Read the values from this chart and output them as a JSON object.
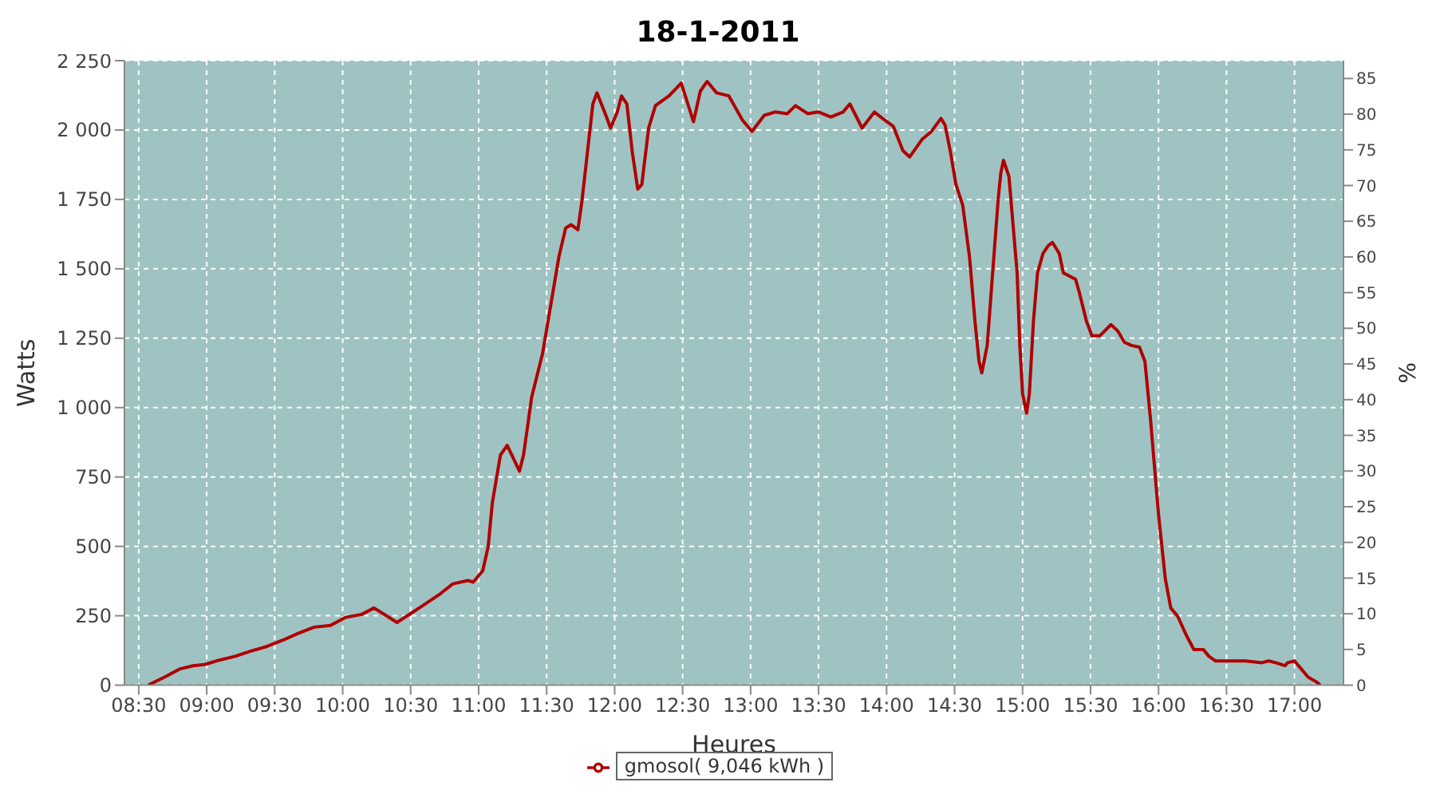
{
  "chart_data": {
    "type": "line",
    "title": "18-1-2011",
    "xlabel": "Heures",
    "ylabel": "Watts",
    "y2label": "%",
    "x": [
      8.57,
      8.69,
      8.8,
      8.9,
      8.99,
      9.07,
      9.21,
      9.32,
      9.44,
      9.56,
      9.67,
      9.79,
      9.91,
      10.02,
      10.14,
      10.23,
      10.4,
      10.6,
      10.72,
      10.81,
      10.92,
      10.96,
      11.03,
      11.07,
      11.1,
      11.16,
      11.21,
      11.3,
      11.33,
      11.39,
      11.47,
      11.54,
      11.59,
      11.64,
      11.68,
      11.73,
      11.76,
      11.8,
      11.84,
      11.87,
      11.94,
      11.97,
      12.02,
      12.05,
      12.09,
      12.13,
      12.17,
      12.2,
      12.25,
      12.3,
      12.4,
      12.49,
      12.55,
      12.58,
      12.63,
      12.68,
      12.75,
      12.84,
      12.94,
      13.01,
      13.1,
      13.18,
      13.27,
      13.33,
      13.42,
      13.5,
      13.59,
      13.68,
      13.73,
      13.82,
      13.91,
      13.97,
      14.05,
      14.12,
      14.17,
      14.26,
      14.33,
      14.4,
      14.43,
      14.47,
      14.51,
      14.56,
      14.61,
      14.65,
      14.68,
      14.7,
      14.74,
      14.78,
      14.82,
      14.84,
      14.86,
      14.9,
      14.93,
      14.96,
      14.98,
      15.0,
      15.03,
      15.05,
      15.08,
      15.11,
      15.15,
      15.19,
      15.22,
      15.27,
      15.3,
      15.39,
      15.42,
      15.47,
      15.51,
      15.57,
      15.65,
      15.7,
      15.75,
      15.8,
      15.86,
      15.9,
      15.94,
      16.0,
      16.05,
      16.09,
      16.14,
      16.21,
      16.26,
      16.33,
      16.37,
      16.42,
      16.52,
      16.64,
      16.76,
      16.81,
      16.86,
      16.93,
      16.95,
      17.0,
      17.05,
      17.1,
      17.16,
      17.19
    ],
    "series": [
      {
        "name": "gmosol( 9,046 kWh )",
        "color": "#b00000",
        "values": [
          0,
          29,
          58,
          70,
          75,
          87,
          104,
          122,
          139,
          162,
          186,
          209,
          215,
          244,
          255,
          278,
          226,
          290,
          330,
          365,
          377,
          371,
          412,
          499,
          655,
          829,
          864,
          771,
          829,
          1038,
          1195,
          1398,
          1543,
          1647,
          1659,
          1641,
          1746,
          1920,
          2094,
          2134,
          2047,
          2007,
          2065,
          2123,
          2094,
          1920,
          1787,
          1804,
          2007,
          2088,
          2123,
          2169,
          2076,
          2030,
          2140,
          2175,
          2134,
          2123,
          2036,
          1995,
          2053,
          2065,
          2059,
          2088,
          2059,
          2065,
          2047,
          2065,
          2094,
          2007,
          2065,
          2042,
          2013,
          1926,
          1903,
          1966,
          1995,
          2042,
          2018,
          1920,
          1804,
          1729,
          1543,
          1311,
          1166,
          1125,
          1224,
          1485,
          1746,
          1845,
          1891,
          1833,
          1659,
          1485,
          1224,
          1050,
          980,
          1050,
          1311,
          1485,
          1555,
          1584,
          1595,
          1555,
          1485,
          1462,
          1410,
          1311,
          1259,
          1259,
          1299,
          1276,
          1235,
          1224,
          1218,
          1166,
          963,
          615,
          383,
          278,
          249,
          174,
          128,
          128,
          104,
          87,
          87,
          87,
          81,
          87,
          81,
          70,
          81,
          87,
          58,
          29,
          12,
          0
        ]
      }
    ],
    "xlim": [
      8.395,
      17.36
    ],
    "xticks": [
      {
        "value": 8.5,
        "label": "08:30"
      },
      {
        "value": 9,
        "label": "09:00"
      },
      {
        "value": 9.5,
        "label": "09:30"
      },
      {
        "value": 10,
        "label": "10:00"
      },
      {
        "value": 10.5,
        "label": "10:30"
      },
      {
        "value": 11,
        "label": "11:00"
      },
      {
        "value": 11.5,
        "label": "11:30"
      },
      {
        "value": 12,
        "label": "12:00"
      },
      {
        "value": 12.5,
        "label": "12:30"
      },
      {
        "value": 13,
        "label": "13:00"
      },
      {
        "value": 13.5,
        "label": "13:30"
      },
      {
        "value": 14,
        "label": "14:00"
      },
      {
        "value": 14.5,
        "label": "14:30"
      },
      {
        "value": 15,
        "label": "15:00"
      },
      {
        "value": 15.5,
        "label": "15:30"
      },
      {
        "value": 16,
        "label": "16:00"
      },
      {
        "value": 16.5,
        "label": "16:30"
      },
      {
        "value": 17,
        "label": "17:00"
      }
    ],
    "ylim": [
      0,
      2250
    ],
    "yticks": [
      0,
      250,
      500,
      750,
      {
        "value": 1000,
        "label": "1 000"
      },
      {
        "value": 1250,
        "label": "1 250"
      },
      {
        "value": 1500,
        "label": "1 500"
      },
      {
        "value": 1750,
        "label": "1 750"
      },
      {
        "value": 2000,
        "label": "2 000"
      },
      {
        "value": 2250,
        "label": "2 250"
      }
    ],
    "y2lim": [
      0,
      87.5
    ],
    "y2ticks": [
      0,
      5,
      10,
      15,
      20,
      25,
      30,
      35,
      40,
      45,
      50,
      55,
      60,
      65,
      70,
      75,
      80,
      85
    ],
    "grid": true,
    "legend": "bottom",
    "marker": "none",
    "line_style": "solid"
  }
}
